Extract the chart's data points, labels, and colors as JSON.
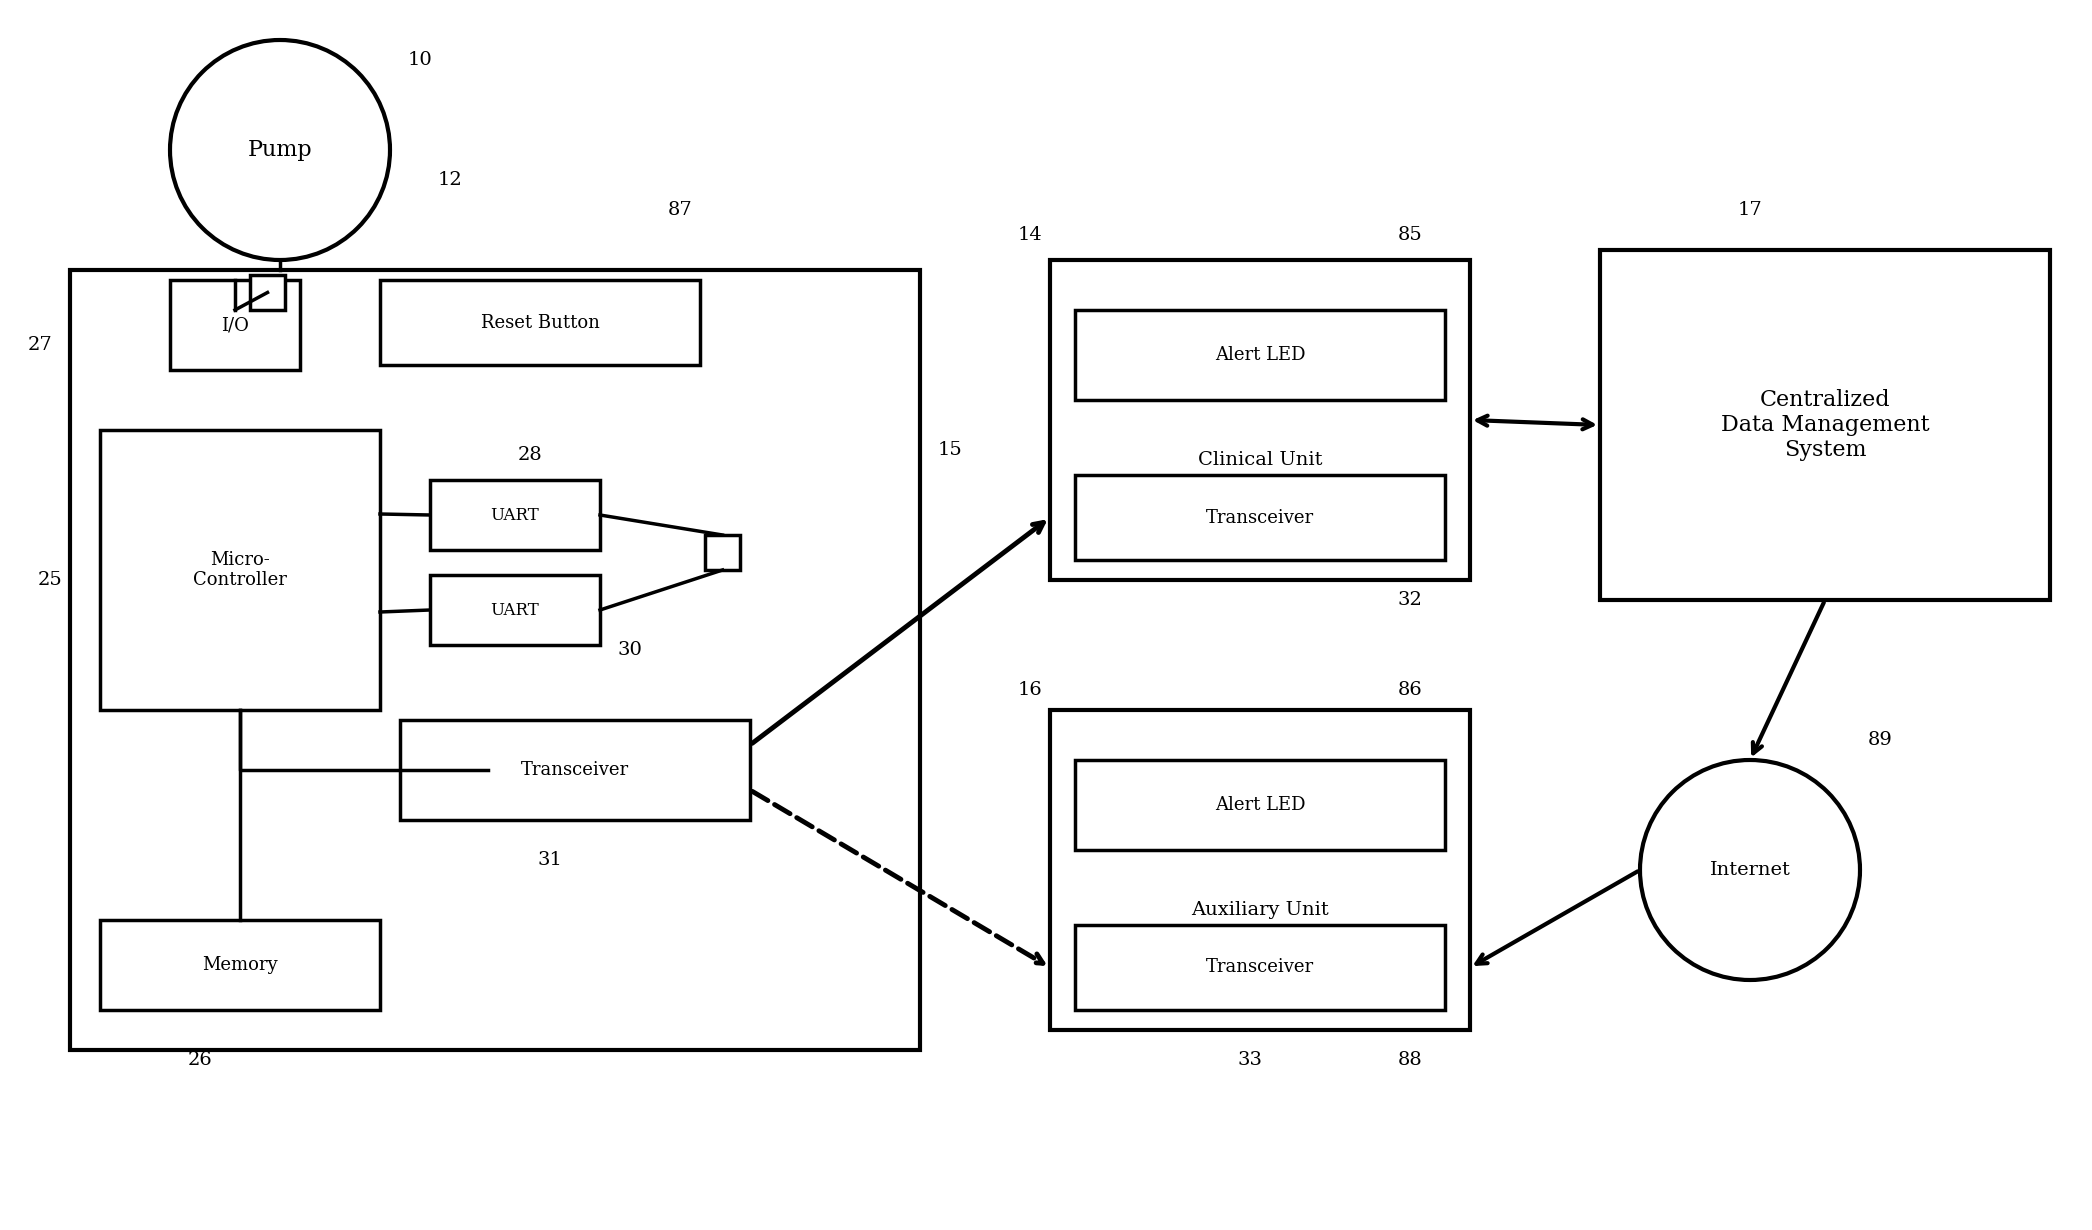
{
  "bg_color": "#ffffff",
  "line_color": "#000000",
  "lw": 2.5,
  "font_family": "serif",
  "labels": {
    "pump_label": "Pump",
    "io_label": "I/O",
    "reset_label": "Reset Button",
    "micro_label": "Micro-\nController",
    "uart1_label": "UART",
    "uart2_label": "UART",
    "memory_label": "Memory",
    "transceiver_main_label": "Transceiver",
    "alert_led_clinical_label": "Alert LED",
    "clinical_unit_label": "Clinical Unit",
    "transceiver_clinical_label": "Transceiver",
    "alert_led_aux_label": "Alert LED",
    "aux_unit_label": "Auxiliary Unit",
    "transceiver_aux_label": "Transceiver",
    "cdms_label": "Centralized\nData Management\nSystem",
    "internet_label": "Internet"
  },
  "ref_numbers": {
    "n10": "10",
    "n12": "12",
    "n14": "14",
    "n15": "15",
    "n16": "16",
    "n17": "17",
    "n25": "25",
    "n26": "26",
    "n27": "27",
    "n28": "28",
    "n30": "30",
    "n31": "31",
    "n32": "32",
    "n33": "33",
    "n85": "85",
    "n86": "86",
    "n87": "87",
    "n88": "88",
    "n89": "89"
  }
}
